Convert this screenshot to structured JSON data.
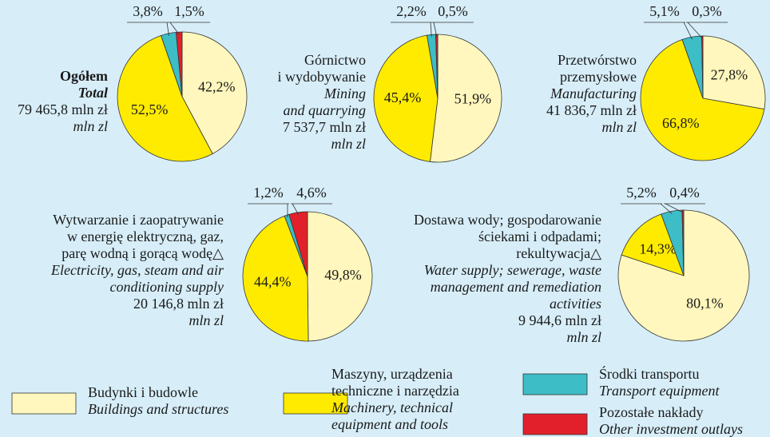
{
  "chart_data": [
    {
      "type": "pie",
      "title": [
        "Ogółem"
      ],
      "subtitle": [
        "Total"
      ],
      "total": "79 465,8 mln zł",
      "unit": "mln zl",
      "values": [
        42.2,
        52.5,
        3.8,
        1.5
      ],
      "value_labels": [
        "42,2%",
        "52,5%",
        "3,8%",
        "1,5%"
      ]
    },
    {
      "type": "pie",
      "title": [
        "Górnictwo",
        "i wydobywanie"
      ],
      "subtitle": [
        "Mining",
        "and quarrying"
      ],
      "total": "7 537,7 mln zł",
      "unit": "mln zl",
      "values": [
        51.9,
        45.4,
        2.2,
        0.5
      ],
      "value_labels": [
        "51,9%",
        "45,4%",
        "2,2%",
        "0,5%"
      ]
    },
    {
      "type": "pie",
      "title": [
        "Przetwórstwo",
        "przemysłowe"
      ],
      "subtitle": [
        "Manufacturing"
      ],
      "total": "41 836,7 mln zł",
      "unit": "mln zl",
      "values": [
        27.8,
        66.8,
        5.1,
        0.3
      ],
      "value_labels": [
        "27,8%",
        "66,8%",
        "5,1%",
        "0,3%"
      ]
    },
    {
      "type": "pie",
      "title": [
        "Wytwarzanie i zaopatrywanie",
        "w energię elektryczną, gaz,",
        "parę wodną i gorącą wodę△"
      ],
      "subtitle": [
        "Electricity, gas, steam and air",
        "conditioning supply"
      ],
      "total": "20 146,8 mln zł",
      "unit": "mln zl",
      "values": [
        49.8,
        44.4,
        1.2,
        4.6
      ],
      "value_labels": [
        "49,8%",
        "44,4%",
        "1,2%",
        "4,6%"
      ]
    },
    {
      "type": "pie",
      "title": [
        "Dostawa wody; gospodarowanie",
        "ściekami i odpadami;",
        "rekultywacja△"
      ],
      "subtitle": [
        "Water supply; sewerage, waste",
        "management and remediation",
        "activities"
      ],
      "total": "9 944,6 mln zł",
      "unit": "mln zl",
      "values": [
        80.1,
        14.3,
        5.2,
        0.4
      ],
      "value_labels": [
        "80,1%",
        "14,3%",
        "5,2%",
        "0,4%"
      ]
    }
  ],
  "legend": [
    {
      "label": [
        "Budynki i budowle"
      ],
      "label_en": [
        "Buildings and structures"
      ],
      "color": "#fff7bd"
    },
    {
      "label": [
        "Maszyny, urządzenia",
        "techniczne i narzędzia"
      ],
      "label_en": [
        "Machinery, technical",
        "equipment and tools"
      ],
      "color": "#ffeb00"
    },
    {
      "label": [
        "Środki transportu"
      ],
      "label_en": [
        "Transport equipment"
      ],
      "color": "#3dbdc6"
    },
    {
      "label": [
        "Pozostałe nakłady"
      ],
      "label_en": [
        "Other investment outlays"
      ],
      "color": "#e2202b"
    }
  ]
}
